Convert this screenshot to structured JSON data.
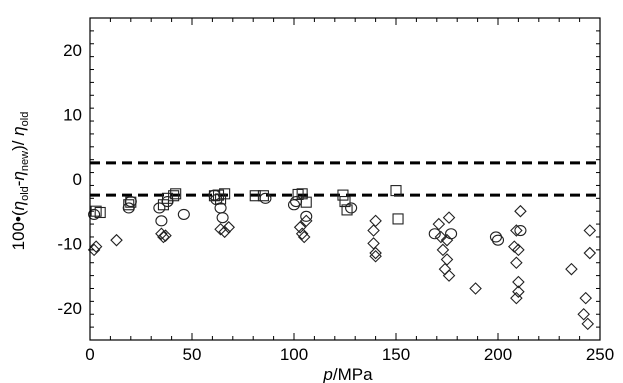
{
  "chart_data": {
    "type": "scatter",
    "xlabel_italic": "p",
    "xlabel_rest": "/MPa",
    "ylabel": "100•(ηold-ηnew)/ηold",
    "ylabel_parts": {
      "prefix": "100•(",
      "eta1": "η",
      "sub1": "old",
      "minus": "-",
      "eta2": "η",
      "sub2": "new",
      "close": ")/ ",
      "eta3": "η",
      "sub3": "old"
    },
    "xlim": [
      0,
      250
    ],
    "ylim": [
      -25,
      25
    ],
    "xticks": [
      0,
      50,
      100,
      150,
      200,
      250
    ],
    "yticks": [
      -20,
      -10,
      0,
      10,
      20
    ],
    "grid": false,
    "reference_lines": [
      2.5,
      -2.5
    ],
    "series": [
      {
        "marker": "square",
        "points": [
          [
            3,
            -5
          ],
          [
            5,
            -5.2
          ],
          [
            19,
            -4
          ],
          [
            20,
            -3.6
          ],
          [
            36,
            -4
          ],
          [
            38,
            -3
          ],
          [
            41,
            -2.6
          ],
          [
            42,
            -2.3
          ],
          [
            61,
            -2.6
          ],
          [
            63,
            -2.5
          ],
          [
            64,
            -3.1
          ],
          [
            66,
            -2.3
          ],
          [
            81,
            -2.6
          ],
          [
            85,
            -2.6
          ],
          [
            102,
            -2.4
          ],
          [
            104,
            -2.3
          ],
          [
            106,
            -3.6
          ],
          [
            124,
            -2.5
          ],
          [
            125,
            -3.5
          ],
          [
            126,
            -4.8
          ],
          [
            150,
            -1.8
          ],
          [
            151,
            -6.2
          ]
        ]
      },
      {
        "marker": "circle",
        "points": [
          [
            2,
            -5.5
          ],
          [
            19,
            -4.5
          ],
          [
            20,
            -3.5
          ],
          [
            34,
            -4.5
          ],
          [
            35,
            -6.5
          ],
          [
            38,
            -3.5
          ],
          [
            46,
            -5.5
          ],
          [
            61,
            -2.5
          ],
          [
            62,
            -3.2
          ],
          [
            64,
            -4.5
          ],
          [
            65,
            -6
          ],
          [
            86,
            -3
          ],
          [
            100,
            -4
          ],
          [
            101,
            -3.5
          ],
          [
            106,
            -5.8
          ],
          [
            128,
            -4.5
          ],
          [
            169,
            -8.5
          ],
          [
            177,
            -8.5
          ],
          [
            199,
            -9
          ],
          [
            200,
            -9.5
          ],
          [
            211,
            -8
          ]
        ]
      },
      {
        "marker": "diamond",
        "points": [
          [
            2,
            -11
          ],
          [
            3,
            -10.5
          ],
          [
            13,
            -9.5
          ],
          [
            35,
            -8.5
          ],
          [
            36,
            -9
          ],
          [
            37,
            -8.8
          ],
          [
            64,
            -7.8
          ],
          [
            66,
            -8.2
          ],
          [
            68,
            -7.5
          ],
          [
            103,
            -7.5
          ],
          [
            104,
            -8.5
          ],
          [
            105,
            -9
          ],
          [
            106,
            -6.5
          ],
          [
            140,
            -6.5
          ],
          [
            139,
            -8
          ],
          [
            139,
            -10
          ],
          [
            140,
            -11.5
          ],
          [
            140,
            -12
          ],
          [
            171,
            -7
          ],
          [
            172,
            -9
          ],
          [
            173,
            -11
          ],
          [
            175,
            -12.5
          ],
          [
            174,
            -14
          ],
          [
            176,
            -15
          ],
          [
            176,
            -6
          ],
          [
            175,
            -9.5
          ],
          [
            189,
            -17
          ],
          [
            208,
            -10.5
          ],
          [
            209,
            -8
          ],
          [
            209,
            -13
          ],
          [
            210,
            -16
          ],
          [
            210,
            -17.5
          ],
          [
            209,
            -18.5
          ],
          [
            211,
            -5
          ],
          [
            210,
            -11
          ],
          [
            236,
            -14
          ],
          [
            245,
            -8
          ],
          [
            245,
            -11.5
          ],
          [
            243,
            -18.5
          ],
          [
            242,
            -21
          ],
          [
            244,
            -22.5
          ]
        ]
      }
    ]
  }
}
